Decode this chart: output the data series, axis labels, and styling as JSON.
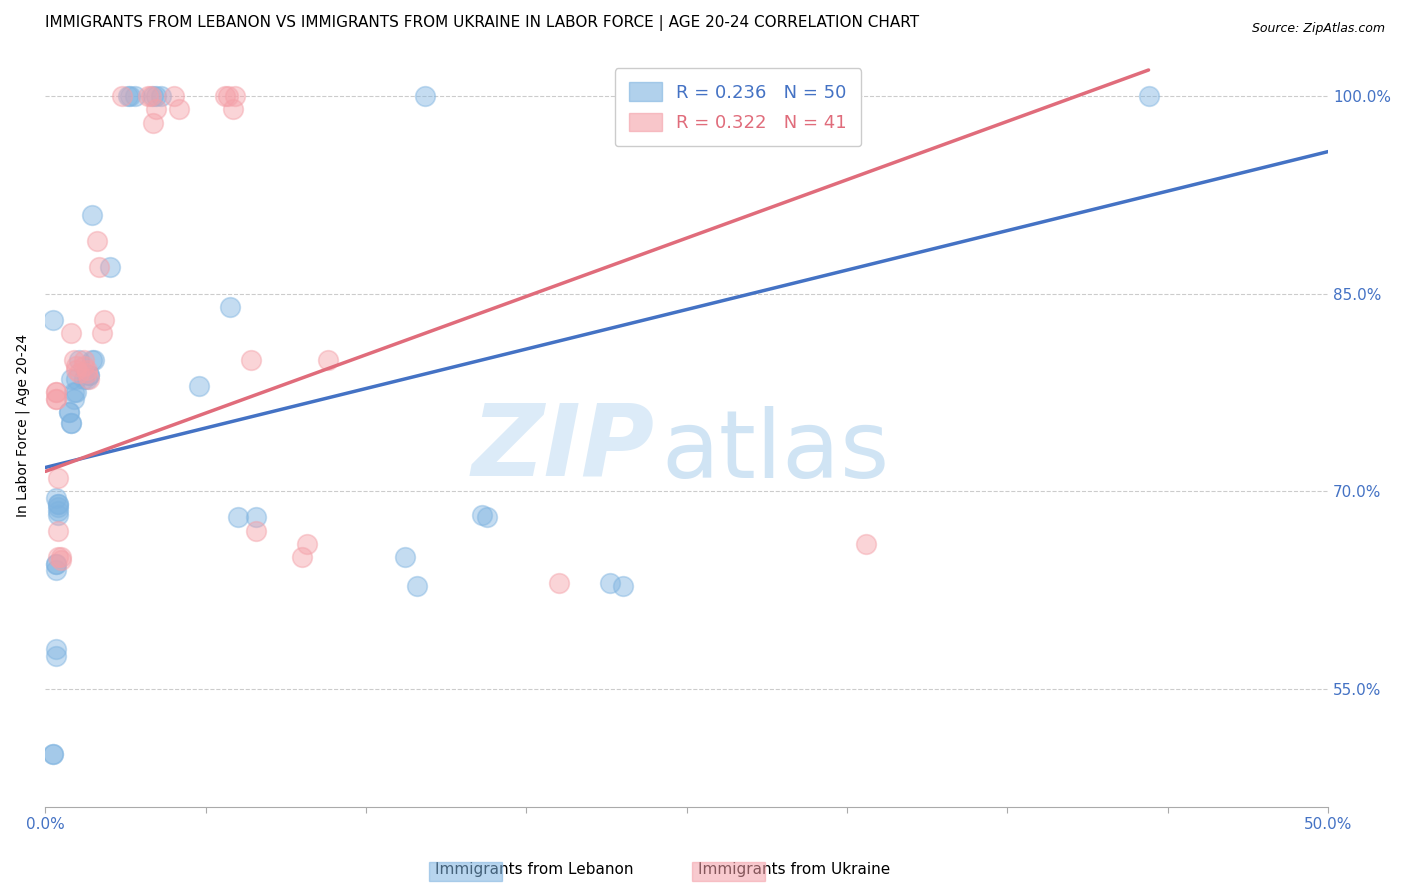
{
  "title": "IMMIGRANTS FROM LEBANON VS IMMIGRANTS FROM UKRAINE IN LABOR FORCE | AGE 20-24 CORRELATION CHART",
  "source": "Source: ZipAtlas.com",
  "ylabel": "In Labor Force | Age 20-24",
  "xlim": [
    0.0,
    0.5
  ],
  "ylim": [
    0.46,
    1.04
  ],
  "xticks": [
    0.0,
    0.0625,
    0.125,
    0.1875,
    0.25,
    0.3125,
    0.375,
    0.4375,
    0.5
  ],
  "xticklabels": [
    "0.0%",
    "",
    "",
    "",
    "",
    "",
    "",
    "",
    "50.0%"
  ],
  "ytick_positions": [
    0.55,
    0.7,
    0.85,
    1.0
  ],
  "ytick_labels": [
    "55.0%",
    "70.0%",
    "85.0%",
    "100.0%"
  ],
  "legend_r_lebanon": "0.236",
  "legend_n_lebanon": "50",
  "legend_r_ukraine": "0.322",
  "legend_n_ukraine": "41",
  "color_lebanon": "#7EB3E0",
  "color_ukraine": "#F4A0A8",
  "color_blue": "#4472C4",
  "color_pink": "#E06C7B",
  "watermark_zip": "ZIP",
  "watermark_atlas": "atlas",
  "lebanon_scatter_x": [
    0.025,
    0.032,
    0.033,
    0.035,
    0.042,
    0.043,
    0.045,
    0.018,
    0.01,
    0.011,
    0.011,
    0.012,
    0.012,
    0.013,
    0.015,
    0.016,
    0.017,
    0.017,
    0.018,
    0.019,
    0.009,
    0.009,
    0.01,
    0.01,
    0.004,
    0.005,
    0.005,
    0.005,
    0.005,
    0.005,
    0.004,
    0.004,
    0.004,
    0.004,
    0.004,
    0.06,
    0.072,
    0.075,
    0.082,
    0.14,
    0.145,
    0.148,
    0.17,
    0.172,
    0.22,
    0.225,
    0.003,
    0.003,
    0.003,
    0.43
  ],
  "lebanon_scatter_y": [
    0.87,
    1.0,
    1.0,
    1.0,
    1.0,
    1.0,
    1.0,
    0.91,
    0.785,
    0.77,
    0.775,
    0.775,
    0.785,
    0.8,
    0.785,
    0.785,
    0.788,
    0.788,
    0.8,
    0.8,
    0.76,
    0.76,
    0.752,
    0.752,
    0.695,
    0.69,
    0.69,
    0.688,
    0.685,
    0.682,
    0.645,
    0.64,
    0.645,
    0.58,
    0.575,
    0.78,
    0.84,
    0.68,
    0.68,
    0.65,
    0.628,
    1.0,
    0.682,
    0.68,
    0.63,
    0.628,
    0.5,
    0.5,
    0.83,
    1.0
  ],
  "ukraine_scatter_x": [
    0.03,
    0.04,
    0.041,
    0.042,
    0.043,
    0.05,
    0.052,
    0.07,
    0.071,
    0.073,
    0.074,
    0.02,
    0.021,
    0.022,
    0.023,
    0.01,
    0.011,
    0.012,
    0.012,
    0.013,
    0.015,
    0.015,
    0.016,
    0.016,
    0.017,
    0.08,
    0.082,
    0.1,
    0.102,
    0.11,
    0.2,
    0.004,
    0.004,
    0.004,
    0.004,
    0.005,
    0.005,
    0.005,
    0.006,
    0.006,
    0.32
  ],
  "ukraine_scatter_y": [
    1.0,
    1.0,
    1.0,
    0.98,
    0.99,
    1.0,
    0.99,
    1.0,
    1.0,
    0.99,
    1.0,
    0.89,
    0.87,
    0.82,
    0.83,
    0.82,
    0.8,
    0.795,
    0.792,
    0.79,
    0.8,
    0.795,
    0.792,
    0.79,
    0.785,
    0.8,
    0.67,
    0.65,
    0.66,
    0.8,
    0.63,
    0.775,
    0.775,
    0.77,
    0.77,
    0.71,
    0.67,
    0.65,
    0.65,
    0.648,
    0.66
  ],
  "lebanon_line_x": [
    0.0,
    0.5
  ],
  "lebanon_line_y": [
    0.718,
    0.958
  ],
  "ukraine_line_x": [
    0.0,
    0.43
  ],
  "ukraine_line_y": [
    0.715,
    1.02
  ],
  "grid_color": "#CCCCCC",
  "background_color": "#FFFFFF",
  "title_fontsize": 11,
  "axis_label_fontsize": 10,
  "tick_fontsize": 11
}
